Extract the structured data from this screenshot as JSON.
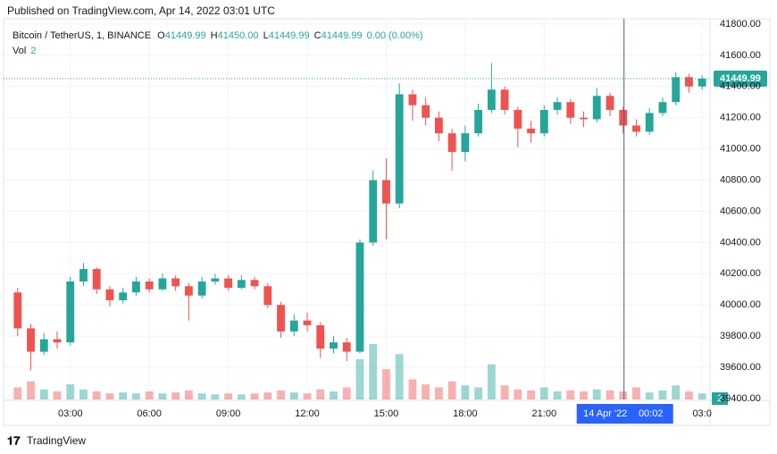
{
  "header": {
    "published": "Published on TradingView.com, Apr 14, 2022 03:01 UTC"
  },
  "footer": {
    "brand": "TradingView"
  },
  "chart_data": {
    "type": "candlestick",
    "symbol": "Bitcoin / TetherUS, 1, BINANCE",
    "ohlc_legend": [
      {
        "label": "O",
        "value": "41449.99"
      },
      {
        "label": "H",
        "value": "41450.00"
      },
      {
        "label": "L",
        "value": "41449.99"
      },
      {
        "label": "C",
        "value": "41449.99"
      }
    ],
    "change": "0.00 (0.00%)",
    "volume_legend": {
      "label": "Vol",
      "value": "2"
    },
    "up_color": "#26a69a",
    "down_color": "#ef5350",
    "x": [
      1.0,
      1.5,
      2.0,
      2.5,
      3.0,
      3.5,
      4.0,
      4.5,
      5.0,
      5.5,
      6.0,
      6.5,
      7.0,
      7.5,
      8.0,
      8.5,
      9.0,
      9.5,
      10.0,
      10.5,
      11.0,
      11.5,
      12.0,
      12.5,
      13.0,
      13.5,
      14.0,
      14.5,
      15.0,
      15.5,
      16.0,
      16.5,
      17.0,
      17.5,
      18.0,
      18.5,
      19.0,
      19.5,
      20.0,
      20.5,
      21.0,
      21.5,
      22.0,
      22.5,
      23.0,
      23.5,
      24.0,
      24.5,
      25.0,
      25.5,
      26.0,
      26.5,
      27.0
    ],
    "open": [
      40080,
      39850,
      39700,
      39780,
      39760,
      40150,
      40230,
      40100,
      40030,
      40080,
      40150,
      40100,
      40170,
      40120,
      40060,
      40150,
      40170,
      40110,
      40160,
      40120,
      40000,
      39830,
      39900,
      39870,
      39720,
      39760,
      39700,
      40400,
      40800,
      40650,
      41350,
      41280,
      41200,
      41100,
      40980,
      41100,
      41250,
      41380,
      41250,
      41130,
      41100,
      41250,
      41300,
      41200,
      41190,
      41340,
      41250,
      41150,
      41110,
      41230,
      41300,
      41460,
      41400
    ],
    "high": [
      40110,
      39880,
      39820,
      39830,
      40180,
      40270,
      40240,
      40120,
      40110,
      40180,
      40170,
      40200,
      40190,
      40140,
      40180,
      40200,
      40190,
      40190,
      40180,
      40140,
      40020,
      39940,
      39950,
      39890,
      39800,
      39790,
      40420,
      40860,
      40940,
      41420,
      41380,
      41330,
      41240,
      41130,
      41150,
      41290,
      41550,
      41400,
      41270,
      41180,
      41280,
      41330,
      41320,
      41240,
      41390,
      41360,
      41270,
      41190,
      41260,
      41330,
      41490,
      41480,
      41470
    ],
    "low": [
      39800,
      39580,
      39680,
      39720,
      39740,
      40120,
      40070,
      39990,
      40010,
      40060,
      40080,
      40090,
      40090,
      39900,
      40040,
      40130,
      40090,
      40100,
      40100,
      39980,
      39790,
      39800,
      39830,
      39660,
      39690,
      39640,
      39690,
      40380,
      40420,
      40620,
      41180,
      41150,
      41050,
      40860,
      40920,
      41080,
      41230,
      41220,
      41010,
      41040,
      41080,
      41220,
      41160,
      41140,
      41170,
      41210,
      41100,
      41080,
      41090,
      41210,
      41280,
      41360,
      41380
    ],
    "close": [
      39850,
      39700,
      39780,
      39760,
      40150,
      40230,
      40100,
      40030,
      40080,
      40150,
      40100,
      40170,
      40120,
      40060,
      40150,
      40170,
      40110,
      40160,
      40120,
      40000,
      39830,
      39900,
      39870,
      39720,
      39760,
      39700,
      40400,
      40800,
      40650,
      41350,
      41280,
      41200,
      41100,
      40980,
      41100,
      41250,
      41380,
      41250,
      41130,
      41100,
      41250,
      41300,
      41200,
      41190,
      41340,
      41250,
      41150,
      41110,
      41230,
      41300,
      41460,
      41400,
      41449.99
    ],
    "volume": [
      12,
      18,
      10,
      8,
      15,
      10,
      8,
      6,
      7,
      6,
      8,
      6,
      7,
      9,
      6,
      5,
      6,
      5,
      6,
      7,
      9,
      7,
      6,
      10,
      8,
      12,
      40,
      55,
      30,
      45,
      20,
      15,
      12,
      18,
      14,
      12,
      35,
      14,
      10,
      9,
      12,
      8,
      9,
      8,
      10,
      9,
      8,
      12,
      7,
      9,
      14,
      8,
      6
    ],
    "xlim": [
      0.6,
      27.3
    ],
    "xticks": [
      {
        "value": 3,
        "label": "03:00"
      },
      {
        "value": 6,
        "label": "06:00"
      },
      {
        "value": 9,
        "label": "09:00"
      },
      {
        "value": 12,
        "label": "12:00"
      },
      {
        "value": 15,
        "label": "15:00"
      },
      {
        "value": 18,
        "label": "18:00"
      },
      {
        "value": 21,
        "label": "21:00"
      },
      {
        "value": 27,
        "label": "03:0"
      }
    ],
    "ylim": [
      39394,
      41834
    ],
    "yticks": [
      {
        "value": 39400,
        "label": "39400.00"
      },
      {
        "value": 39600,
        "label": "39600.00"
      },
      {
        "value": 39800,
        "label": "39800.00"
      },
      {
        "value": 40000,
        "label": "40000.00"
      },
      {
        "value": 40200,
        "label": "40200.00"
      },
      {
        "value": 40400,
        "label": "40400.00"
      },
      {
        "value": 40600,
        "label": "40600.00"
      },
      {
        "value": 40800,
        "label": "40800.00"
      },
      {
        "value": 41000,
        "label": "41000.00"
      },
      {
        "value": 41200,
        "label": "41200.00"
      },
      {
        "value": 41400,
        "label": "41400.00"
      },
      {
        "value": 41600,
        "label": "41600.00"
      },
      {
        "value": 41800,
        "label": "41800.00"
      }
    ],
    "last_price": 41449.99,
    "last_volume": 2,
    "crosshair": {
      "x": 24.0333,
      "date_label": "14 Apr '22",
      "time_label": "00:02"
    }
  }
}
